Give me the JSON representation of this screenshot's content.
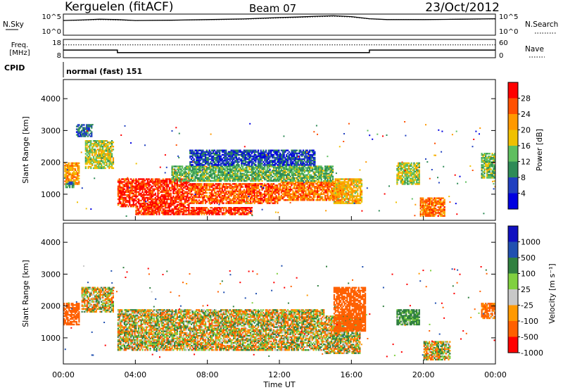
{
  "header": {
    "station": "Kerguelen (fitACF)",
    "beam": "Beam 07",
    "date": "23/Oct/2012"
  },
  "top_panels": {
    "nsky_label": "N.Sky",
    "nsky_ticks": [
      "10^5",
      "10^0"
    ],
    "nsearch_label": "N.Search",
    "nsearch_ticks": [
      "10^5",
      "10^0"
    ],
    "freq_label_line1": "Freq.",
    "freq_label_line2": "[MHz]",
    "freq_ticks": [
      "18",
      "8"
    ],
    "nave_label": "Nave",
    "nave_ticks": [
      "60",
      "0"
    ],
    "cpid_label": "CPID",
    "cpid_value": "normal (fast) 151"
  },
  "colors": {
    "power": [
      "#0000e0",
      "#2040c0",
      "#2e8b57",
      "#5fbf5f",
      "#f0c000",
      "#ff9900",
      "#ff5000",
      "#ff0000"
    ],
    "velocity": [
      "#ff0000",
      "#ff6000",
      "#ff9900",
      "#c8c8c8",
      "#80d040",
      "#308040",
      "#2050b0",
      "#1010c0"
    ],
    "ground_scatter": "#c8c8c0"
  },
  "chart_data": [
    {
      "type": "line",
      "title": "N.Sky / N.Search",
      "x": [
        0,
        1,
        2,
        3,
        4,
        6,
        8,
        10,
        12,
        13,
        14,
        15,
        16,
        17,
        18,
        20,
        22,
        24
      ],
      "series": [
        {
          "name": "N.Sky",
          "values": [
            3000,
            4000,
            6000,
            5000,
            3000,
            3500,
            5000,
            7000,
            15000,
            20000,
            30000,
            40000,
            25000,
            8000,
            5000,
            5000,
            6000,
            8000
          ]
        },
        {
          "name": "N.Search",
          "values": [
            3000,
            3500,
            5000,
            4000,
            3000,
            3500,
            4500,
            6000,
            12000,
            16000,
            22000,
            30000,
            20000,
            7000,
            5000,
            5000,
            6000,
            7000
          ]
        }
      ],
      "ylim": [
        1,
        100000
      ],
      "scale": "log"
    },
    {
      "type": "line",
      "title": "Freq / Nave",
      "x": [
        0,
        3,
        3,
        17,
        17,
        24
      ],
      "series": [
        {
          "name": "Freq.",
          "values": [
            12.2,
            12.2,
            10.8,
            10.8,
            12.2,
            12.2
          ]
        },
        {
          "name": "Nave",
          "values": [
            42,
            42,
            42,
            42,
            42,
            42
          ]
        }
      ],
      "ylim": [
        8,
        18
      ]
    },
    {
      "type": "heatmap",
      "title": "Power",
      "xlabel": "",
      "ylabel": "Slant Range [km]",
      "xlim": [
        0,
        24
      ],
      "ylim": [
        180,
        4600
      ],
      "x_ticks": [
        "00:00",
        "04:00",
        "08:00",
        "12:00",
        "16:00",
        "20:00",
        "00:00"
      ],
      "y_ticks": [
        1000,
        2000,
        3000,
        4000
      ],
      "colorbar": {
        "label": "Power [dB]",
        "ticks": [
          4,
          8,
          12,
          16,
          20,
          24,
          28
        ],
        "range": [
          0,
          32
        ]
      },
      "regions": [
        {
          "t0": 0.05,
          "t1": 0.9,
          "r0": 1300,
          "r1": 2000,
          "value": 22
        },
        {
          "t0": 0.1,
          "t1": 0.6,
          "r0": 1200,
          "r1": 1400,
          "value": 10
        },
        {
          "t0": 1.2,
          "t1": 2.8,
          "r0": 1800,
          "r1": 2700,
          "value": 16
        },
        {
          "t0": 0.7,
          "t1": 1.6,
          "r0": 2800,
          "r1": 3200,
          "value": 8
        },
        {
          "t0": 3.0,
          "t1": 7.0,
          "r0": 600,
          "r1": 1500,
          "value": 28
        },
        {
          "t0": 7.0,
          "t1": 12.0,
          "r0": 700,
          "r1": 1350,
          "value": 26
        },
        {
          "t0": 4.0,
          "t1": 10.5,
          "r0": 350,
          "r1": 600,
          "value": 28
        },
        {
          "t0": 12.0,
          "t1": 15.5,
          "r0": 800,
          "r1": 1400,
          "value": 24
        },
        {
          "t0": 6.0,
          "t1": 15.0,
          "r0": 1400,
          "r1": 1900,
          "value": 13
        },
        {
          "t0": 7.0,
          "t1": 14.0,
          "r0": 1900,
          "r1": 2400,
          "value": 6
        },
        {
          "t0": 15.0,
          "t1": 16.6,
          "r0": 700,
          "r1": 1500,
          "value": 20
        },
        {
          "t0": 18.5,
          "t1": 19.8,
          "r0": 1300,
          "r1": 2000,
          "value": 16
        },
        {
          "t0": 19.8,
          "t1": 21.2,
          "r0": 300,
          "r1": 900,
          "value": 24
        },
        {
          "t0": 23.2,
          "t1": 24.0,
          "r0": 1500,
          "r1": 2300,
          "value": 14
        }
      ]
    },
    {
      "type": "heatmap",
      "title": "Velocity",
      "xlabel": "Time UT",
      "ylabel": "Slant Range [km]",
      "xlim": [
        0,
        24
      ],
      "ylim": [
        180,
        4600
      ],
      "x_ticks": [
        "00:00",
        "04:00",
        "08:00",
        "12:00",
        "16:00",
        "20:00",
        "00:00"
      ],
      "y_ticks": [
        1000,
        2000,
        3000,
        4000
      ],
      "colorbar": {
        "label": "Velocity [m s⁻¹]",
        "ticks": [
          1000,
          500,
          100,
          25,
          -25,
          -100,
          -500,
          -1000
        ],
        "range": [
          -1000,
          1000
        ]
      },
      "regions": [
        {
          "t0": 0.0,
          "t1": 0.9,
          "r0": 1400,
          "r1": 2100,
          "value": -300
        },
        {
          "t0": 1.0,
          "t1": 2.8,
          "r0": 1800,
          "r1": 2600,
          "value": 0
        },
        {
          "t0": 3.0,
          "t1": 14.5,
          "r0": 600,
          "r1": 1900,
          "value": 0
        },
        {
          "t0": 14.5,
          "t1": 16.5,
          "r0": 500,
          "r1": 1700,
          "value": 0
        },
        {
          "t0": 15.0,
          "t1": 16.8,
          "r0": 1200,
          "r1": 2600,
          "value": -300
        },
        {
          "t0": 18.5,
          "t1": 19.8,
          "r0": 1400,
          "r1": 1900,
          "value": 200
        },
        {
          "t0": 20.0,
          "t1": 21.5,
          "r0": 300,
          "r1": 900,
          "value": 0
        },
        {
          "t0": 23.2,
          "t1": 24.0,
          "r0": 1600,
          "r1": 2100,
          "value": -200
        }
      ]
    }
  ]
}
